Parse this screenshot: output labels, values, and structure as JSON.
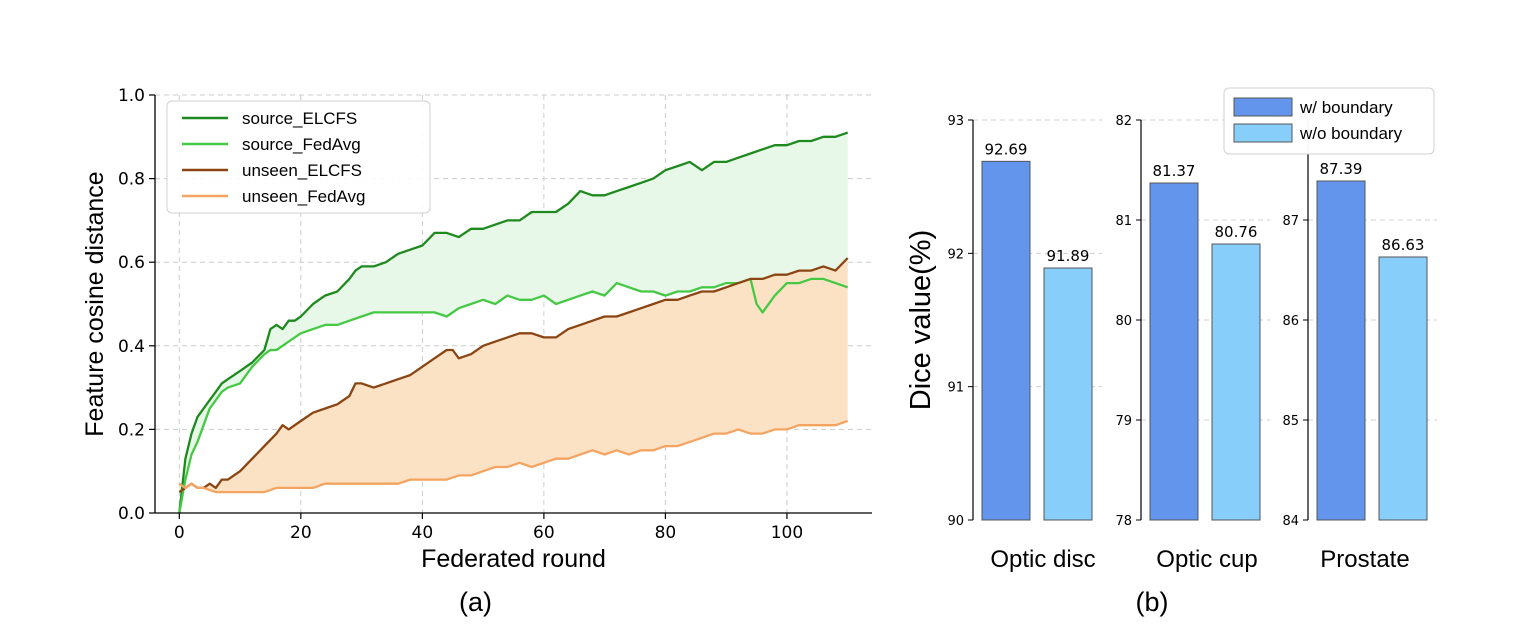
{
  "chart_data": [
    {
      "type": "line",
      "panel_label": "(a)",
      "xlabel": "Federated round",
      "ylabel": "Feature cosine distance",
      "xlim": [
        -4,
        114
      ],
      "ylim": [
        0,
        1.0
      ],
      "xticks": [
        0,
        20,
        40,
        60,
        80,
        100
      ],
      "xtick_labels": [
        "0",
        "20",
        "40",
        "60",
        "80",
        "100"
      ],
      "yticks": [
        0.0,
        0.2,
        0.4,
        0.6,
        0.8,
        1.0
      ],
      "ytick_labels": [
        "0.0",
        "0.2",
        "0.4",
        "0.6",
        "0.8",
        "1.0"
      ],
      "grid": true,
      "legend_position": "top-left",
      "shaded_regions": [
        {
          "between": [
            "source_ELCFS",
            "source_FedAvg"
          ],
          "color": "#e8f8e8"
        },
        {
          "between": [
            "unseen_ELCFS",
            "unseen_FedAvg"
          ],
          "color": "#fce2c5"
        }
      ],
      "series": [
        {
          "name": "source_ELCFS",
          "color": "#1e8a1e",
          "x": [
            0,
            1,
            2,
            3,
            4,
            5,
            6,
            7,
            8,
            10,
            12,
            14,
            15,
            16,
            17,
            18,
            19,
            20,
            22,
            24,
            26,
            28,
            29,
            30,
            32,
            34,
            36,
            38,
            40,
            42,
            44,
            46,
            48,
            50,
            52,
            54,
            56,
            58,
            60,
            62,
            64,
            66,
            68,
            70,
            72,
            74,
            76,
            78,
            80,
            82,
            84,
            85,
            86,
            88,
            90,
            92,
            94,
            96,
            98,
            100,
            102,
            104,
            106,
            108,
            110
          ],
          "y": [
            0.0,
            0.13,
            0.19,
            0.23,
            0.25,
            0.27,
            0.29,
            0.31,
            0.32,
            0.34,
            0.36,
            0.39,
            0.44,
            0.45,
            0.44,
            0.46,
            0.46,
            0.47,
            0.5,
            0.52,
            0.53,
            0.56,
            0.58,
            0.59,
            0.59,
            0.6,
            0.62,
            0.63,
            0.64,
            0.67,
            0.67,
            0.66,
            0.68,
            0.68,
            0.69,
            0.7,
            0.7,
            0.72,
            0.72,
            0.72,
            0.74,
            0.77,
            0.76,
            0.76,
            0.77,
            0.78,
            0.79,
            0.8,
            0.82,
            0.83,
            0.84,
            0.83,
            0.82,
            0.84,
            0.84,
            0.85,
            0.86,
            0.87,
            0.88,
            0.88,
            0.89,
            0.89,
            0.9,
            0.9,
            0.91
          ]
        },
        {
          "name": "source_FedAvg",
          "color": "#45c945",
          "x": [
            0,
            1,
            2,
            3,
            4,
            5,
            6,
            7,
            8,
            10,
            12,
            14,
            15,
            16,
            17,
            18,
            20,
            22,
            24,
            26,
            28,
            30,
            32,
            34,
            36,
            38,
            40,
            42,
            44,
            46,
            48,
            50,
            52,
            54,
            56,
            58,
            60,
            62,
            64,
            66,
            68,
            70,
            72,
            74,
            76,
            78,
            80,
            82,
            84,
            86,
            88,
            90,
            92,
            94,
            95,
            96,
            98,
            100,
            102,
            104,
            106,
            108,
            110
          ],
          "y": [
            0.0,
            0.08,
            0.14,
            0.17,
            0.21,
            0.25,
            0.27,
            0.29,
            0.3,
            0.31,
            0.35,
            0.38,
            0.39,
            0.39,
            0.4,
            0.41,
            0.43,
            0.44,
            0.45,
            0.45,
            0.46,
            0.47,
            0.48,
            0.48,
            0.48,
            0.48,
            0.48,
            0.48,
            0.47,
            0.49,
            0.5,
            0.51,
            0.5,
            0.52,
            0.51,
            0.51,
            0.52,
            0.5,
            0.51,
            0.52,
            0.53,
            0.52,
            0.55,
            0.54,
            0.53,
            0.53,
            0.52,
            0.53,
            0.53,
            0.54,
            0.54,
            0.55,
            0.55,
            0.56,
            0.5,
            0.48,
            0.52,
            0.55,
            0.55,
            0.56,
            0.56,
            0.55,
            0.54
          ]
        },
        {
          "name": "unseen_ELCFS",
          "color": "#8b4513",
          "x": [
            0,
            1,
            2,
            3,
            4,
            5,
            6,
            7,
            8,
            10,
            12,
            14,
            16,
            17,
            18,
            20,
            22,
            24,
            26,
            28,
            29,
            30,
            32,
            34,
            36,
            38,
            40,
            42,
            44,
            45,
            46,
            48,
            50,
            52,
            54,
            56,
            58,
            60,
            62,
            64,
            66,
            68,
            70,
            72,
            74,
            76,
            78,
            80,
            82,
            84,
            86,
            88,
            90,
            92,
            94,
            96,
            98,
            100,
            102,
            104,
            106,
            108,
            110
          ],
          "y": [
            0.05,
            0.06,
            0.07,
            0.06,
            0.06,
            0.07,
            0.06,
            0.08,
            0.08,
            0.1,
            0.13,
            0.16,
            0.19,
            0.21,
            0.2,
            0.22,
            0.24,
            0.25,
            0.26,
            0.28,
            0.31,
            0.31,
            0.3,
            0.31,
            0.32,
            0.33,
            0.35,
            0.37,
            0.39,
            0.39,
            0.37,
            0.38,
            0.4,
            0.41,
            0.42,
            0.43,
            0.43,
            0.42,
            0.42,
            0.44,
            0.45,
            0.46,
            0.47,
            0.47,
            0.48,
            0.49,
            0.5,
            0.51,
            0.51,
            0.52,
            0.53,
            0.53,
            0.54,
            0.55,
            0.56,
            0.56,
            0.57,
            0.57,
            0.58,
            0.58,
            0.59,
            0.58,
            0.61
          ]
        },
        {
          "name": "unseen_FedAvg",
          "color": "#f4a460",
          "x": [
            0,
            1,
            2,
            3,
            4,
            6,
            8,
            10,
            12,
            14,
            16,
            18,
            20,
            22,
            24,
            26,
            28,
            30,
            32,
            34,
            36,
            38,
            40,
            42,
            44,
            46,
            48,
            50,
            52,
            54,
            56,
            58,
            60,
            62,
            64,
            66,
            68,
            70,
            72,
            74,
            76,
            78,
            80,
            82,
            84,
            86,
            88,
            90,
            92,
            94,
            96,
            98,
            100,
            102,
            104,
            106,
            108,
            110
          ],
          "y": [
            0.07,
            0.06,
            0.07,
            0.06,
            0.06,
            0.05,
            0.05,
            0.05,
            0.05,
            0.05,
            0.06,
            0.06,
            0.06,
            0.06,
            0.07,
            0.07,
            0.07,
            0.07,
            0.07,
            0.07,
            0.07,
            0.08,
            0.08,
            0.08,
            0.08,
            0.09,
            0.09,
            0.1,
            0.11,
            0.11,
            0.12,
            0.11,
            0.12,
            0.13,
            0.13,
            0.14,
            0.15,
            0.14,
            0.15,
            0.14,
            0.15,
            0.15,
            0.16,
            0.16,
            0.17,
            0.18,
            0.19,
            0.19,
            0.2,
            0.19,
            0.19,
            0.2,
            0.2,
            0.21,
            0.21,
            0.21,
            0.21,
            0.22
          ]
        }
      ]
    },
    {
      "type": "bar",
      "panel_label": "(b)",
      "ylabel": "Dice value(%)",
      "grid": true,
      "legend_position": "top-right",
      "legend": [
        {
          "name": "w/ boundary",
          "color": "#6495ed"
        },
        {
          "name": "w/o boundary",
          "color": "#87cefa"
        }
      ],
      "groups": [
        {
          "category": "Optic disc",
          "ylim": [
            90,
            93
          ],
          "yticks": [
            "90",
            "91",
            "92",
            "93"
          ],
          "values": [
            92.69,
            91.89
          ],
          "labels": [
            "92.69",
            "91.89"
          ]
        },
        {
          "category": "Optic cup",
          "ylim": [
            78,
            82
          ],
          "yticks": [
            "78",
            "79",
            "80",
            "81",
            "82"
          ],
          "values": [
            81.37,
            80.76
          ],
          "labels": [
            "81.37",
            "80.76"
          ]
        },
        {
          "category": "Prostate",
          "ylim": [
            84,
            88
          ],
          "yticks": [
            "84",
            "85",
            "86",
            "87"
          ],
          "values": [
            87.39,
            86.63
          ],
          "labels": [
            "87.39",
            "86.63"
          ]
        }
      ]
    }
  ]
}
